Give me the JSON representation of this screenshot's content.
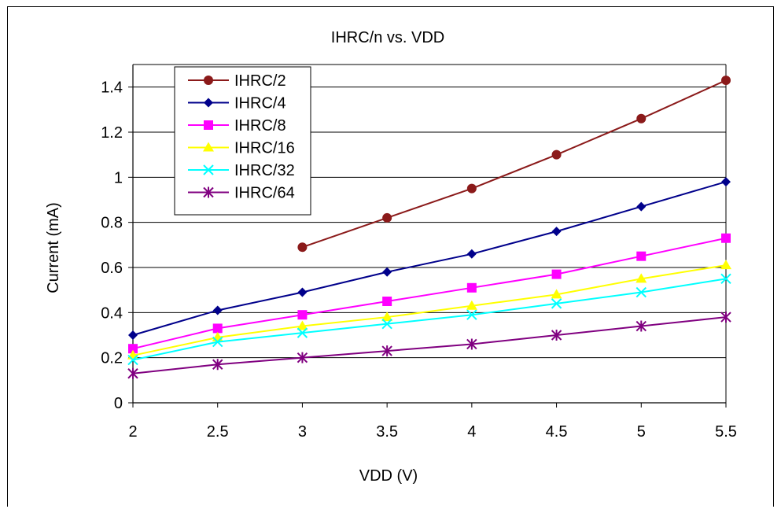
{
  "chart_data": {
    "type": "line",
    "title": "IHRC/n vs. VDD",
    "xlabel": "VDD (V)",
    "ylabel": "Current (mA)",
    "xlim": [
      2,
      5.5
    ],
    "ylim": [
      0,
      1.5
    ],
    "x_ticks": [
      "2",
      "2.5",
      "3",
      "3.5",
      "4",
      "4.5",
      "5",
      "5.5"
    ],
    "y_ticks": [
      "0",
      "0.2",
      "0.4",
      "0.6",
      "0.8",
      "1",
      "1.2",
      "1.4"
    ],
    "grid": "horizontal",
    "legend_position": "top-left",
    "series": [
      {
        "name": "IHRC/2",
        "color": "#8B1A1A",
        "marker": "circle",
        "x": [
          3,
          3.5,
          4,
          4.5,
          5,
          5.5
        ],
        "values": [
          0.69,
          0.82,
          0.95,
          1.1,
          1.26,
          1.43
        ]
      },
      {
        "name": "IHRC/4",
        "color": "#00008B",
        "marker": "diamond",
        "x": [
          2,
          2.5,
          3,
          3.5,
          4,
          4.5,
          5,
          5.5
        ],
        "values": [
          0.3,
          0.41,
          0.49,
          0.58,
          0.66,
          0.76,
          0.87,
          0.98
        ]
      },
      {
        "name": "IHRC/8",
        "color": "#FF00FF",
        "marker": "square",
        "x": [
          2,
          2.5,
          3,
          3.5,
          4,
          4.5,
          5,
          5.5
        ],
        "values": [
          0.24,
          0.33,
          0.39,
          0.45,
          0.51,
          0.57,
          0.65,
          0.73
        ]
      },
      {
        "name": "IHRC/16",
        "color": "#FFFF00",
        "marker": "triangle",
        "x": [
          2,
          2.5,
          3,
          3.5,
          4,
          4.5,
          5,
          5.5
        ],
        "values": [
          0.21,
          0.29,
          0.34,
          0.38,
          0.43,
          0.48,
          0.55,
          0.61
        ]
      },
      {
        "name": "IHRC/32",
        "color": "#00FFFF",
        "marker": "x",
        "x": [
          2,
          2.5,
          3,
          3.5,
          4,
          4.5,
          5,
          5.5
        ],
        "values": [
          0.19,
          0.27,
          0.31,
          0.35,
          0.39,
          0.44,
          0.49,
          0.55
        ]
      },
      {
        "name": "IHRC/64",
        "color": "#800080",
        "marker": "star",
        "x": [
          2,
          2.5,
          3,
          3.5,
          4,
          4.5,
          5,
          5.5
        ],
        "values": [
          0.13,
          0.17,
          0.2,
          0.23,
          0.26,
          0.3,
          0.34,
          0.38
        ]
      }
    ]
  }
}
